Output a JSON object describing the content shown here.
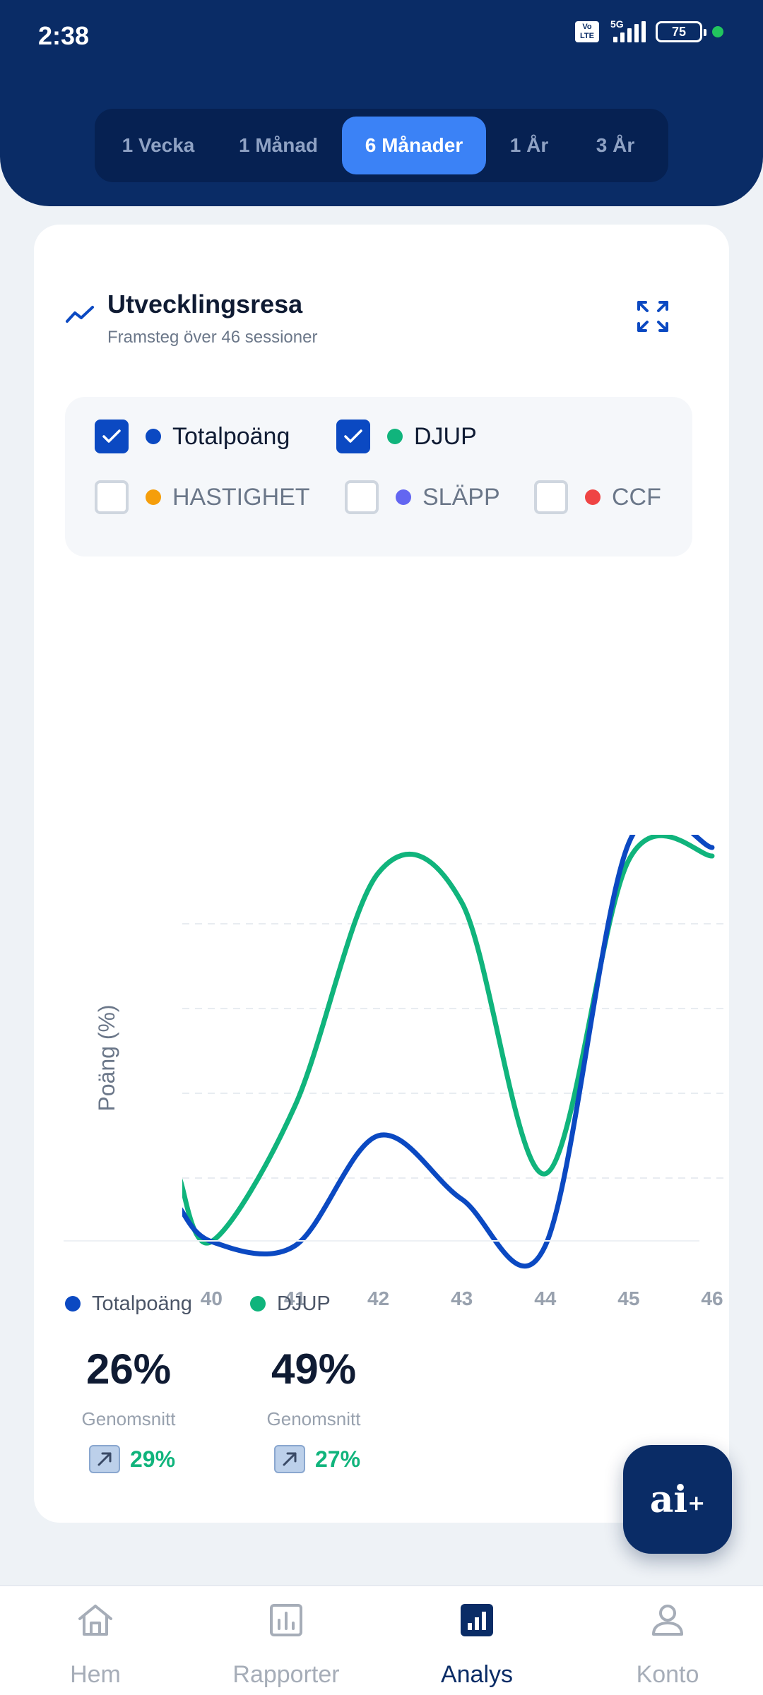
{
  "status_bar": {
    "time": "2:38",
    "network": "5G",
    "volte": "Vo LTE",
    "battery": "75"
  },
  "period_tabs": [
    {
      "label": "1 Vecka",
      "active": false
    },
    {
      "label": "1 Månad",
      "active": false
    },
    {
      "label": "6 Månader",
      "active": true
    },
    {
      "label": "1 År",
      "active": false
    },
    {
      "label": "3 År",
      "active": false
    }
  ],
  "card": {
    "title": "Utvecklingsresa",
    "subtitle": "Framsteg över 46 sessioner"
  },
  "legend": [
    {
      "label": "Totalpoäng",
      "checked": true,
      "color": "#0b49c2"
    },
    {
      "label": "DJUP",
      "checked": true,
      "color": "#10b47c"
    },
    {
      "label": "HASTIGHET",
      "checked": false,
      "color": "#f59e0b"
    },
    {
      "label": "SLÄPP",
      "checked": false,
      "color": "#6366f1"
    },
    {
      "label": "CCF",
      "checked": false,
      "color": "#ef4444"
    }
  ],
  "chart_data": {
    "type": "line",
    "ylabel": "Poäng (%)",
    "xlabel": "",
    "x": [
      40,
      41,
      42,
      43,
      44,
      45,
      46
    ],
    "ylim": [
      0,
      100
    ],
    "grid": "horizontal dashed",
    "series": [
      {
        "name": "Totalpoäng",
        "color": "#0b49c2",
        "values": [
          5,
          4,
          30,
          15,
          4,
          99,
          98
        ]
      },
      {
        "name": "DJUP",
        "color": "#10b47c",
        "values": [
          5,
          37,
          92,
          85,
          21,
          95,
          96
        ]
      }
    ]
  },
  "stats": [
    {
      "name": "Totalpoäng",
      "color": "#0b49c2",
      "value": "26%",
      "caption": "Genomsnitt",
      "trend": "29%"
    },
    {
      "name": "DJUP",
      "color": "#10b47c",
      "value": "49%",
      "caption": "Genomsnitt",
      "trend": "27%"
    }
  ],
  "fab": {
    "text": "ai",
    "plus": "+"
  },
  "bottom_nav": [
    {
      "label": "Hem",
      "icon": "home-icon",
      "active": false
    },
    {
      "label": "Rapporter",
      "icon": "report-icon",
      "active": false
    },
    {
      "label": "Analys",
      "icon": "analytics-icon",
      "active": true
    },
    {
      "label": "Konto",
      "icon": "account-icon",
      "active": false
    }
  ]
}
